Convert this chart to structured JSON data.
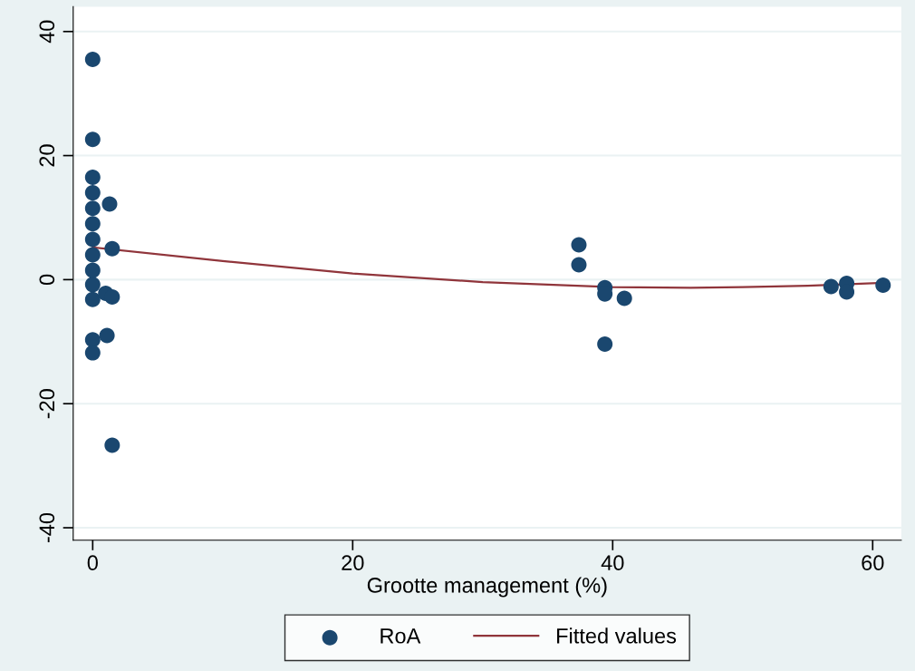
{
  "chart_data": {
    "type": "scatter",
    "xlabel": "Grootte management (%)",
    "xlim": [
      -1.5,
      62.2
    ],
    "xticks": [
      0,
      20,
      40,
      60
    ],
    "ylim": [
      -42,
      44
    ],
    "yticks": [
      -40,
      -20,
      0,
      20,
      40
    ],
    "grid": "y",
    "legend": "bottom",
    "marker": "circle",
    "series": [
      {
        "name": "RoA",
        "color": "#1a476f",
        "x": [
          0,
          0,
          0,
          0,
          0,
          0,
          0,
          0,
          0,
          0,
          0,
          0,
          0,
          1.3,
          1.5,
          1.0,
          1.5,
          1.1,
          1.5,
          37.4,
          37.4,
          39.4,
          39.4,
          40.9,
          39.4,
          56.8,
          58.0,
          58.0,
          60.8
        ],
        "values": [
          35.5,
          22.6,
          16.5,
          14,
          11.5,
          9,
          6.5,
          4,
          1.5,
          -0.8,
          -3.2,
          -9.7,
          -11.8,
          12.2,
          5.0,
          -2.2,
          -2.8,
          -9.0,
          -26.7,
          5.6,
          2.4,
          -1.3,
          -2.3,
          -3.0,
          -10.4,
          -1.1,
          -0.6,
          -2.0,
          -0.9
        ]
      },
      {
        "name": "Fitted values",
        "type": "line",
        "color": "#90353b",
        "marker": "none",
        "x": [
          0,
          10,
          20,
          30,
          40,
          46,
          50,
          55,
          60.8
        ],
        "values": [
          5.2,
          3.0,
          1.0,
          -0.4,
          -1.2,
          -1.3,
          -1.2,
          -1.0,
          -0.5
        ]
      }
    ]
  }
}
